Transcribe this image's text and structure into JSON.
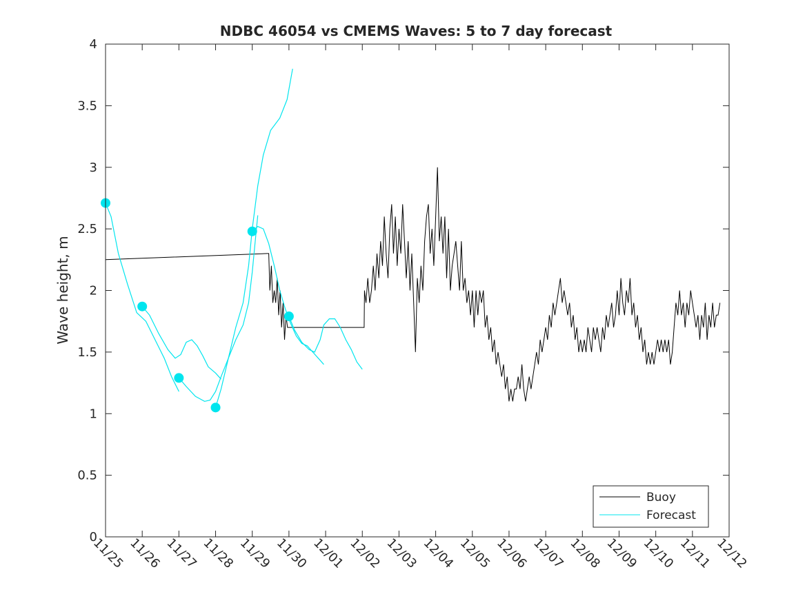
{
  "chart_data": {
    "type": "line",
    "title": "NDBC 46054 vs CMEMS Waves: 5 to 7 day forecast",
    "xlabel": "",
    "ylabel": "Wave height, m",
    "xlim": [
      0,
      17
    ],
    "ylim": [
      0,
      4
    ],
    "grid": false,
    "legend_position": "bottom-right",
    "x_tick_values": [
      0,
      1,
      2,
      3,
      4,
      5,
      6,
      7,
      8,
      9,
      10,
      11,
      12,
      13,
      14,
      15,
      16,
      17
    ],
    "x_tick_labels": [
      "11/25",
      "11/26",
      "11/27",
      "11/28",
      "11/29",
      "11/30",
      "12/01",
      "12/02",
      "12/03",
      "12/04",
      "12/05",
      "12/06",
      "12/07",
      "12/08",
      "12/09",
      "12/10",
      "12/11",
      "12/12"
    ],
    "y_tick_values": [
      0,
      0.5,
      1,
      1.5,
      2,
      2.5,
      3,
      3.5,
      4
    ],
    "y_tick_labels": [
      "0",
      "0.5",
      "1",
      "1.5",
      "2",
      "2.5",
      "3",
      "3.5",
      "4"
    ],
    "colors": {
      "buoy": "#000000",
      "forecast": "#00e5ee"
    },
    "series": [
      {
        "name": "Buoy",
        "color": "#000000",
        "points": [
          [
            0.0,
            2.25
          ],
          [
            4.4,
            2.3
          ],
          [
            4.45,
            2.3
          ],
          [
            4.48,
            2.0
          ],
          [
            4.52,
            2.2
          ],
          [
            4.56,
            1.9
          ],
          [
            4.6,
            2.0
          ],
          [
            4.64,
            1.9
          ],
          [
            4.68,
            2.1
          ],
          [
            4.72,
            1.8
          ],
          [
            4.76,
            2.0
          ],
          [
            4.8,
            1.7
          ],
          [
            4.84,
            1.9
          ],
          [
            4.88,
            1.6
          ],
          [
            4.92,
            1.8
          ],
          [
            4.96,
            1.7
          ],
          [
            5.0,
            1.7
          ],
          [
            6.1,
            1.7
          ],
          [
            6.4,
            1.7
          ],
          [
            6.7,
            1.7
          ],
          [
            7.05,
            1.7
          ],
          [
            7.06,
            2.0
          ],
          [
            7.1,
            1.9
          ],
          [
            7.15,
            2.1
          ],
          [
            7.2,
            1.9
          ],
          [
            7.25,
            2.0
          ],
          [
            7.3,
            2.2
          ],
          [
            7.35,
            2.0
          ],
          [
            7.4,
            2.3
          ],
          [
            7.45,
            2.1
          ],
          [
            7.5,
            2.4
          ],
          [
            7.55,
            2.2
          ],
          [
            7.6,
            2.6
          ],
          [
            7.65,
            2.3
          ],
          [
            7.7,
            2.1
          ],
          [
            7.75,
            2.5
          ],
          [
            7.8,
            2.7
          ],
          [
            7.85,
            2.3
          ],
          [
            7.9,
            2.6
          ],
          [
            7.95,
            2.2
          ],
          [
            8.0,
            2.5
          ],
          [
            8.05,
            2.3
          ],
          [
            8.1,
            2.7
          ],
          [
            8.15,
            2.4
          ],
          [
            8.2,
            2.1
          ],
          [
            8.25,
            2.4
          ],
          [
            8.3,
            2.0
          ],
          [
            8.35,
            2.3
          ],
          [
            8.4,
            1.9
          ],
          [
            8.45,
            1.5
          ],
          [
            8.5,
            2.1
          ],
          [
            8.55,
            1.9
          ],
          [
            8.6,
            2.2
          ],
          [
            8.65,
            2.0
          ],
          [
            8.7,
            2.4
          ],
          [
            8.75,
            2.6
          ],
          [
            8.8,
            2.7
          ],
          [
            8.85,
            2.3
          ],
          [
            8.9,
            2.5
          ],
          [
            8.95,
            2.2
          ],
          [
            9.0,
            2.6
          ],
          [
            9.05,
            3.0
          ],
          [
            9.1,
            2.4
          ],
          [
            9.15,
            2.6
          ],
          [
            9.2,
            2.3
          ],
          [
            9.25,
            2.6
          ],
          [
            9.3,
            2.1
          ],
          [
            9.35,
            2.5
          ],
          [
            9.4,
            2.0
          ],
          [
            9.45,
            2.2
          ],
          [
            9.5,
            2.3
          ],
          [
            9.55,
            2.4
          ],
          [
            9.6,
            2.2
          ],
          [
            9.65,
            2.0
          ],
          [
            9.7,
            2.4
          ],
          [
            9.75,
            2.0
          ],
          [
            9.8,
            2.1
          ],
          [
            9.85,
            1.9
          ],
          [
            9.9,
            2.0
          ],
          [
            9.95,
            1.8
          ],
          [
            10.0,
            2.0
          ],
          [
            10.05,
            1.7
          ],
          [
            10.1,
            2.0
          ],
          [
            10.15,
            1.8
          ],
          [
            10.2,
            2.0
          ],
          [
            10.25,
            1.9
          ],
          [
            10.3,
            2.0
          ],
          [
            10.35,
            1.7
          ],
          [
            10.4,
            1.8
          ],
          [
            10.45,
            1.6
          ],
          [
            10.5,
            1.7
          ],
          [
            10.55,
            1.5
          ],
          [
            10.6,
            1.6
          ],
          [
            10.65,
            1.4
          ],
          [
            10.7,
            1.5
          ],
          [
            10.75,
            1.4
          ],
          [
            10.8,
            1.3
          ],
          [
            10.85,
            1.4
          ],
          [
            10.9,
            1.2
          ],
          [
            10.95,
            1.3
          ],
          [
            11.0,
            1.1
          ],
          [
            11.05,
            1.2
          ],
          [
            11.1,
            1.1
          ],
          [
            11.15,
            1.2
          ],
          [
            11.2,
            1.2
          ],
          [
            11.25,
            1.3
          ],
          [
            11.3,
            1.2
          ],
          [
            11.35,
            1.4
          ],
          [
            11.4,
            1.2
          ],
          [
            11.45,
            1.1
          ],
          [
            11.5,
            1.2
          ],
          [
            11.55,
            1.3
          ],
          [
            11.6,
            1.2
          ],
          [
            11.65,
            1.3
          ],
          [
            11.7,
            1.4
          ],
          [
            11.75,
            1.5
          ],
          [
            11.8,
            1.4
          ],
          [
            11.85,
            1.6
          ],
          [
            11.9,
            1.5
          ],
          [
            11.95,
            1.6
          ],
          [
            12.0,
            1.7
          ],
          [
            12.05,
            1.6
          ],
          [
            12.1,
            1.8
          ],
          [
            12.15,
            1.7
          ],
          [
            12.2,
            1.9
          ],
          [
            12.25,
            1.8
          ],
          [
            12.3,
            1.9
          ],
          [
            12.35,
            2.0
          ],
          [
            12.4,
            2.1
          ],
          [
            12.45,
            1.9
          ],
          [
            12.5,
            2.0
          ],
          [
            12.55,
            1.9
          ],
          [
            12.6,
            1.8
          ],
          [
            12.65,
            1.9
          ],
          [
            12.7,
            1.7
          ],
          [
            12.75,
            1.8
          ],
          [
            12.8,
            1.6
          ],
          [
            12.85,
            1.7
          ],
          [
            12.9,
            1.5
          ],
          [
            12.95,
            1.6
          ],
          [
            13.0,
            1.5
          ],
          [
            13.05,
            1.6
          ],
          [
            13.1,
            1.5
          ],
          [
            13.15,
            1.7
          ],
          [
            13.2,
            1.6
          ],
          [
            13.25,
            1.5
          ],
          [
            13.3,
            1.7
          ],
          [
            13.35,
            1.6
          ],
          [
            13.4,
            1.7
          ],
          [
            13.45,
            1.6
          ],
          [
            13.5,
            1.5
          ],
          [
            13.55,
            1.7
          ],
          [
            13.6,
            1.6
          ],
          [
            13.65,
            1.8
          ],
          [
            13.7,
            1.7
          ],
          [
            13.75,
            1.8
          ],
          [
            13.8,
            1.9
          ],
          [
            13.85,
            1.7
          ],
          [
            13.9,
            1.8
          ],
          [
            13.95,
            2.0
          ],
          [
            14.0,
            1.8
          ],
          [
            14.05,
            2.1
          ],
          [
            14.1,
            1.9
          ],
          [
            14.15,
            1.8
          ],
          [
            14.2,
            2.0
          ],
          [
            14.25,
            1.9
          ],
          [
            14.3,
            2.1
          ],
          [
            14.35,
            1.8
          ],
          [
            14.4,
            1.9
          ],
          [
            14.45,
            1.7
          ],
          [
            14.5,
            1.8
          ],
          [
            14.55,
            1.6
          ],
          [
            14.6,
            1.7
          ],
          [
            14.65,
            1.5
          ],
          [
            14.7,
            1.6
          ],
          [
            14.75,
            1.4
          ],
          [
            14.8,
            1.5
          ],
          [
            14.85,
            1.4
          ],
          [
            14.9,
            1.5
          ],
          [
            14.95,
            1.4
          ],
          [
            15.0,
            1.5
          ],
          [
            15.05,
            1.6
          ],
          [
            15.1,
            1.5
          ],
          [
            15.15,
            1.6
          ],
          [
            15.2,
            1.5
          ],
          [
            15.25,
            1.6
          ],
          [
            15.3,
            1.5
          ],
          [
            15.35,
            1.6
          ],
          [
            15.4,
            1.4
          ],
          [
            15.45,
            1.5
          ],
          [
            15.5,
            1.7
          ],
          [
            15.55,
            1.9
          ],
          [
            15.6,
            1.8
          ],
          [
            15.65,
            2.0
          ],
          [
            15.7,
            1.8
          ],
          [
            15.75,
            1.9
          ],
          [
            15.8,
            1.7
          ],
          [
            15.85,
            1.9
          ],
          [
            15.9,
            1.8
          ],
          [
            15.95,
            2.0
          ],
          [
            16.0,
            1.9
          ],
          [
            16.05,
            1.8
          ],
          [
            16.1,
            1.7
          ],
          [
            16.15,
            1.8
          ],
          [
            16.2,
            1.6
          ],
          [
            16.25,
            1.8
          ],
          [
            16.3,
            1.7
          ],
          [
            16.35,
            1.9
          ],
          [
            16.4,
            1.6
          ],
          [
            16.45,
            1.8
          ],
          [
            16.5,
            1.7
          ],
          [
            16.55,
            1.9
          ],
          [
            16.6,
            1.7
          ],
          [
            16.65,
            1.8
          ],
          [
            16.7,
            1.8
          ],
          [
            16.75,
            1.9
          ]
        ]
      },
      {
        "name": "Forecast",
        "color": "#00e5ee",
        "segments": [
          [
            [
              0.0,
              2.71
            ],
            [
              0.15,
              2.6
            ],
            [
              0.35,
              2.3
            ],
            [
              0.6,
              2.05
            ],
            [
              0.85,
              1.82
            ],
            [
              1.1,
              1.75
            ],
            [
              1.35,
              1.6
            ],
            [
              1.6,
              1.45
            ],
            [
              1.8,
              1.3
            ],
            [
              2.0,
              1.18
            ]
          ],
          [
            [
              1.0,
              1.87
            ],
            [
              1.2,
              1.8
            ],
            [
              1.45,
              1.65
            ],
            [
              1.7,
              1.52
            ],
            [
              1.9,
              1.45
            ],
            [
              2.05,
              1.48
            ],
            [
              2.2,
              1.58
            ],
            [
              2.35,
              1.6
            ],
            [
              2.5,
              1.55
            ],
            [
              2.65,
              1.47
            ],
            [
              2.8,
              1.38
            ],
            [
              3.0,
              1.33
            ],
            [
              3.15,
              1.28
            ]
          ],
          [
            [
              2.0,
              1.29
            ],
            [
              2.2,
              1.22
            ],
            [
              2.45,
              1.14
            ],
            [
              2.7,
              1.1
            ],
            [
              2.85,
              1.11
            ],
            [
              3.0,
              1.18
            ],
            [
              3.15,
              1.3
            ],
            [
              3.35,
              1.45
            ],
            [
              3.55,
              1.6
            ],
            [
              3.75,
              1.72
            ],
            [
              3.9,
              1.9
            ],
            [
              4.0,
              2.15
            ],
            [
              4.08,
              2.4
            ],
            [
              4.15,
              2.61
            ]
          ],
          [
            [
              3.0,
              1.05
            ],
            [
              3.15,
              1.2
            ],
            [
              3.35,
              1.45
            ],
            [
              3.55,
              1.7
            ],
            [
              3.75,
              1.9
            ],
            [
              3.9,
              2.2
            ],
            [
              4.0,
              2.5
            ],
            [
              4.15,
              2.85
            ],
            [
              4.3,
              3.1
            ],
            [
              4.5,
              3.3
            ],
            [
              4.75,
              3.4
            ],
            [
              4.95,
              3.55
            ],
            [
              5.1,
              3.8
            ]
          ],
          [
            [
              4.0,
              2.48
            ],
            [
              4.15,
              2.52
            ],
            [
              4.3,
              2.5
            ],
            [
              4.45,
              2.38
            ],
            [
              4.6,
              2.2
            ],
            [
              4.75,
              2.0
            ],
            [
              4.9,
              1.85
            ],
            [
              5.05,
              1.73
            ],
            [
              5.2,
              1.63
            ],
            [
              5.35,
              1.57
            ],
            [
              5.5,
              1.55
            ],
            [
              5.65,
              1.5
            ],
            [
              5.8,
              1.45
            ],
            [
              5.95,
              1.4
            ]
          ],
          [
            [
              5.0,
              1.79
            ],
            [
              5.15,
              1.68
            ],
            [
              5.35,
              1.58
            ],
            [
              5.55,
              1.52
            ],
            [
              5.7,
              1.5
            ],
            [
              5.85,
              1.6
            ],
            [
              5.95,
              1.72
            ],
            [
              6.1,
              1.77
            ],
            [
              6.25,
              1.77
            ],
            [
              6.4,
              1.7
            ],
            [
              6.55,
              1.6
            ],
            [
              6.7,
              1.52
            ],
            [
              6.85,
              1.42
            ],
            [
              7.0,
              1.36
            ]
          ]
        ],
        "markers": [
          [
            0.0,
            2.71
          ],
          [
            1.0,
            1.87
          ],
          [
            2.0,
            1.29
          ],
          [
            3.0,
            1.05
          ],
          [
            4.0,
            2.48
          ],
          [
            5.0,
            1.79
          ]
        ]
      }
    ],
    "legend": [
      "Buoy",
      "Forecast"
    ]
  }
}
